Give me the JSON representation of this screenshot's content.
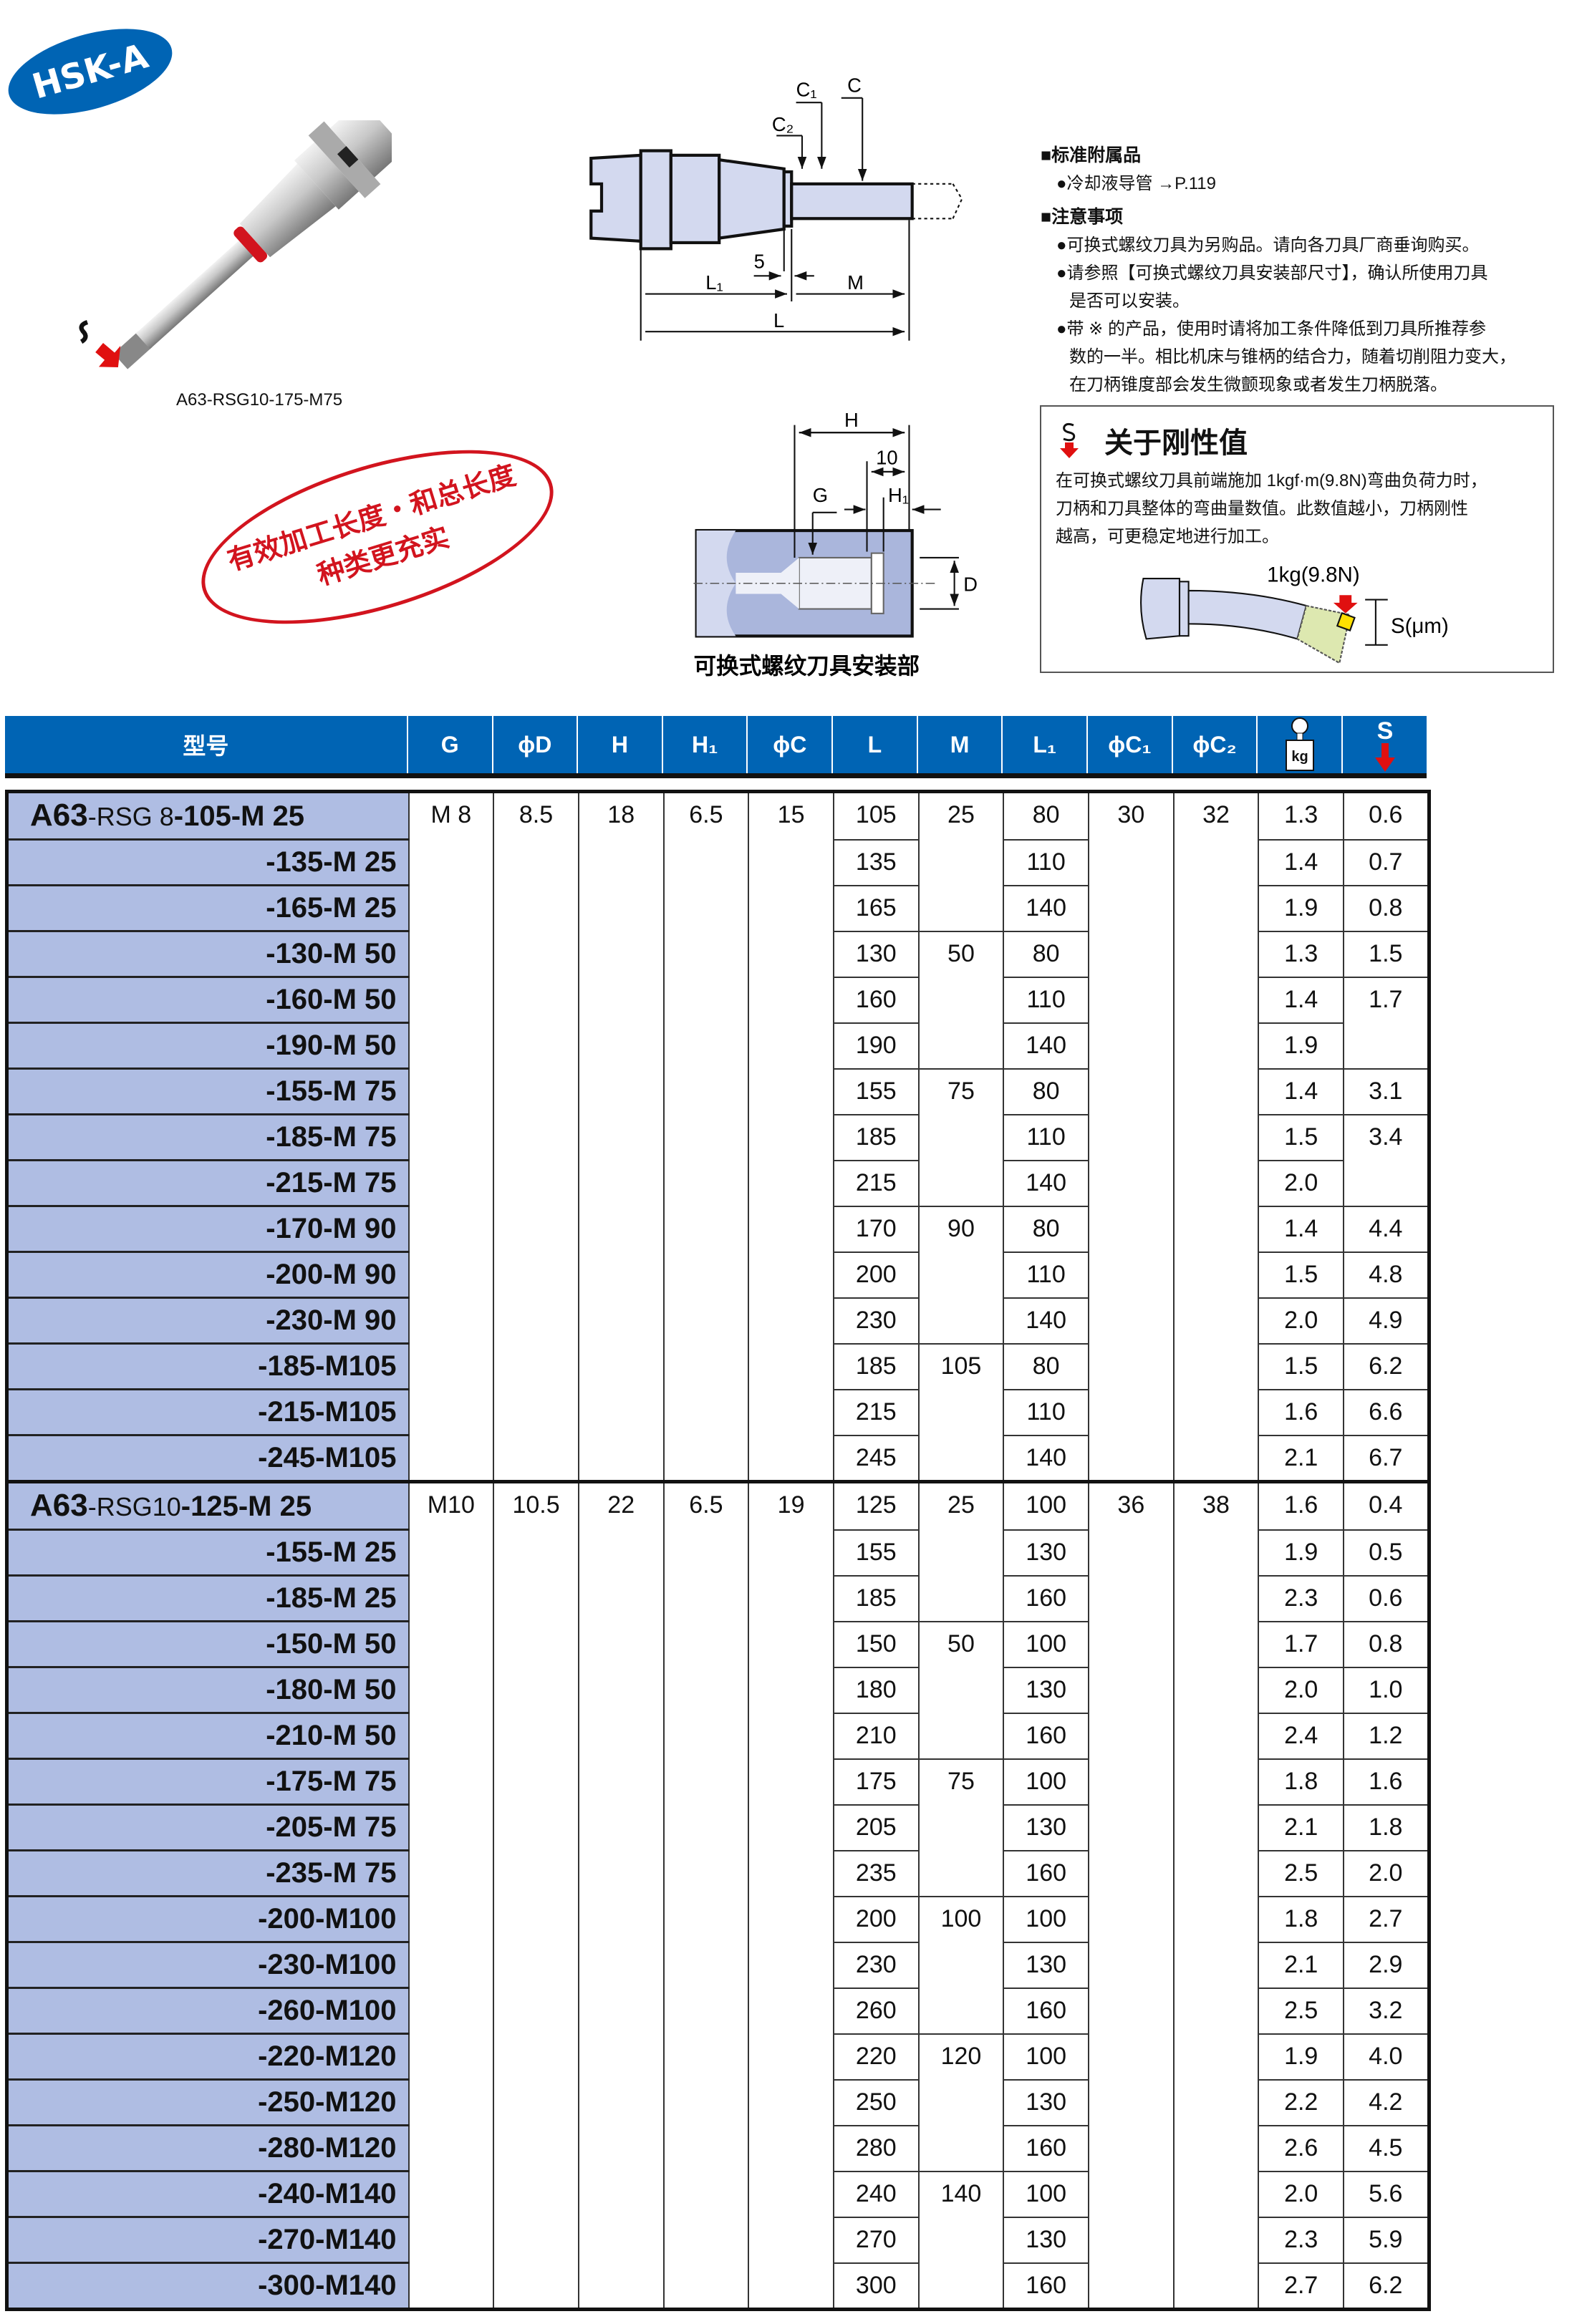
{
  "badge": "HSK-A",
  "photo_caption": "A63-RSG10-175-M75",
  "stamp": {
    "line1": "有效加工长度・和总长度",
    "line2": "种类更充实"
  },
  "diagram_main": {
    "labels": {
      "c1": "C₁",
      "c2": "C₂",
      "c": "C",
      "five": "5",
      "l1": "L₁",
      "m": "M",
      "l": "L"
    }
  },
  "diagram_mount": {
    "labels": {
      "h": "H",
      "ten": "10",
      "h1": "H₁",
      "g": "G",
      "d": "D"
    },
    "caption": "可换式螺纹刀具安装部"
  },
  "notes": {
    "accessory_heading": "■标准附属品",
    "accessory_item": "●冷却液导管 →P.119",
    "caution_heading": "■注意事项",
    "caution_1": "●可换式螺纹刀具为另购品。请向各刀具厂商垂询购买。",
    "caution_2a": "●请参照【可换式螺纹刀具安装部尺寸】，确认所使用刀具",
    "caution_2b": "是否可以安装。",
    "caution_3a": "●带 ※ 的产品，使用时请将加工条件降低到刀具所推荐参",
    "caution_3b": "数的一半。相比机床与锥柄的结合力，随着切削阻力变大，",
    "caution_3c": "在刀柄锥度部会发生微颤现象或者发生刀柄脱落。"
  },
  "stiffness": {
    "title": "关于刚性值",
    "line1": "在可换式螺纹刀具前端施加 1kgf·m(9.8N)弯曲负荷力时，",
    "line2": "刀柄和刀具整体的弯曲量数值。此数值越小，刀柄刚性",
    "line3": "越高，可更稳定地进行加工。",
    "load_label": "1kg(9.8N)",
    "s_label": "S(μm)",
    "icon": "s-deflection-arrow-icon"
  },
  "colors": {
    "header_blue": "#0064b4",
    "model_bg": "#afbde3",
    "accent_red": "#d2141e"
  },
  "table": {
    "headers": [
      "型号",
      "G",
      "ϕD",
      "H",
      "H₁",
      "ϕC",
      "L",
      "M",
      "L₁",
      "ϕC₁",
      "ϕC₂",
      "kg",
      "S"
    ],
    "weight_icon": "weight-kg-icon",
    "stiffness_icon": "s-arrow-icon",
    "rows": [
      {
        "prefix": "A63",
        "series": "-RSG 8",
        "model": "-105-M 25",
        "cells": [
          "M 8",
          "8.5",
          "18",
          "6.5",
          "15",
          "105",
          "25",
          "80",
          "30",
          "32",
          "1.3",
          "0.6"
        ]
      },
      {
        "model": "-135-M 25",
        "cells": [
          "",
          "",
          "",
          "",
          "",
          "135",
          "",
          "110",
          "",
          "",
          "1.4",
          "0.7"
        ]
      },
      {
        "model": "-165-M 25",
        "cells": [
          "",
          "",
          "",
          "",
          "",
          "165",
          "",
          "140",
          "",
          "",
          "1.9",
          "0.8"
        ]
      },
      {
        "model": "-130-M 50",
        "cells": [
          "",
          "",
          "",
          "",
          "",
          "130",
          "50",
          "80",
          "",
          "",
          "1.3",
          "1.5"
        ]
      },
      {
        "model": "-160-M 50",
        "cells": [
          "",
          "",
          "",
          "",
          "",
          "160",
          "",
          "110",
          "",
          "",
          "1.4",
          "1.7"
        ]
      },
      {
        "model": "-190-M 50",
        "cells": [
          "",
          "",
          "",
          "",
          "",
          "190",
          "",
          "140",
          "",
          "",
          "1.9",
          ""
        ]
      },
      {
        "model": "-155-M 75",
        "cells": [
          "",
          "",
          "",
          "",
          "",
          "155",
          "75",
          "80",
          "",
          "",
          "1.4",
          "3.1"
        ]
      },
      {
        "model": "-185-M 75",
        "cells": [
          "",
          "",
          "",
          "",
          "",
          "185",
          "",
          "110",
          "",
          "",
          "1.5",
          "3.4"
        ]
      },
      {
        "model": "-215-M 75",
        "cells": [
          "",
          "",
          "",
          "",
          "",
          "215",
          "",
          "140",
          "",
          "",
          "2.0",
          ""
        ]
      },
      {
        "model": "-170-M 90",
        "cells": [
          "",
          "",
          "",
          "",
          "",
          "170",
          "90",
          "80",
          "",
          "",
          "1.4",
          "4.4"
        ]
      },
      {
        "model": "-200-M 90",
        "cells": [
          "",
          "",
          "",
          "",
          "",
          "200",
          "",
          "110",
          "",
          "",
          "1.5",
          "4.8"
        ]
      },
      {
        "model": "-230-M 90",
        "cells": [
          "",
          "",
          "",
          "",
          "",
          "230",
          "",
          "140",
          "",
          "",
          "2.0",
          "4.9"
        ]
      },
      {
        "model": "-185-M105",
        "cells": [
          "",
          "",
          "",
          "",
          "",
          "185",
          "105",
          "80",
          "",
          "",
          "1.5",
          "6.2"
        ]
      },
      {
        "model": "-215-M105",
        "cells": [
          "",
          "",
          "",
          "",
          "",
          "215",
          "",
          "110",
          "",
          "",
          "1.6",
          "6.6"
        ]
      },
      {
        "model": "-245-M105",
        "cells": [
          "",
          "",
          "",
          "",
          "",
          "245",
          "",
          "140",
          "",
          "",
          "2.1",
          "6.7"
        ]
      },
      {
        "prefix": "A63",
        "series": "-RSG10",
        "model": "-125-M 25",
        "cells": [
          "M10",
          "10.5",
          "22",
          "6.5",
          "19",
          "125",
          "25",
          "100",
          "36",
          "38",
          "1.6",
          "0.4"
        ]
      },
      {
        "model": "-155-M 25",
        "cells": [
          "",
          "",
          "",
          "",
          "",
          "155",
          "",
          "130",
          "",
          "",
          "1.9",
          "0.5"
        ]
      },
      {
        "model": "-185-M 25",
        "cells": [
          "",
          "",
          "",
          "",
          "",
          "185",
          "",
          "160",
          "",
          "",
          "2.3",
          "0.6"
        ]
      },
      {
        "model": "-150-M 50",
        "cells": [
          "",
          "",
          "",
          "",
          "",
          "150",
          "50",
          "100",
          "",
          "",
          "1.7",
          "0.8"
        ]
      },
      {
        "model": "-180-M 50",
        "cells": [
          "",
          "",
          "",
          "",
          "",
          "180",
          "",
          "130",
          "",
          "",
          "2.0",
          "1.0"
        ]
      },
      {
        "model": "-210-M 50",
        "cells": [
          "",
          "",
          "",
          "",
          "",
          "210",
          "",
          "160",
          "",
          "",
          "2.4",
          "1.2"
        ]
      },
      {
        "model": "-175-M 75",
        "cells": [
          "",
          "",
          "",
          "",
          "",
          "175",
          "75",
          "100",
          "",
          "",
          "1.8",
          "1.6"
        ]
      },
      {
        "model": "-205-M 75",
        "cells": [
          "",
          "",
          "",
          "",
          "",
          "205",
          "",
          "130",
          "",
          "",
          "2.1",
          "1.8"
        ]
      },
      {
        "model": "-235-M 75",
        "cells": [
          "",
          "",
          "",
          "",
          "",
          "235",
          "",
          "160",
          "",
          "",
          "2.5",
          "2.0"
        ]
      },
      {
        "model": "-200-M100",
        "cells": [
          "",
          "",
          "",
          "",
          "",
          "200",
          "100",
          "100",
          "",
          "",
          "1.8",
          "2.7"
        ]
      },
      {
        "model": "-230-M100",
        "cells": [
          "",
          "",
          "",
          "",
          "",
          "230",
          "",
          "130",
          "",
          "",
          "2.1",
          "2.9"
        ]
      },
      {
        "model": "-260-M100",
        "cells": [
          "",
          "",
          "",
          "",
          "",
          "260",
          "",
          "160",
          "",
          "",
          "2.5",
          "3.2"
        ]
      },
      {
        "model": "-220-M120",
        "cells": [
          "",
          "",
          "",
          "",
          "",
          "220",
          "120",
          "100",
          "",
          "",
          "1.9",
          "4.0"
        ]
      },
      {
        "model": "-250-M120",
        "cells": [
          "",
          "",
          "",
          "",
          "",
          "250",
          "",
          "130",
          "",
          "",
          "2.2",
          "4.2"
        ]
      },
      {
        "model": "-280-M120",
        "cells": [
          "",
          "",
          "",
          "",
          "",
          "280",
          "",
          "160",
          "",
          "",
          "2.6",
          "4.5"
        ]
      },
      {
        "model": "-240-M140",
        "cells": [
          "",
          "",
          "",
          "",
          "",
          "240",
          "140",
          "100",
          "",
          "",
          "2.0",
          "5.6"
        ]
      },
      {
        "model": "-270-M140",
        "cells": [
          "",
          "",
          "",
          "",
          "",
          "270",
          "",
          "130",
          "",
          "",
          "2.3",
          "5.9"
        ]
      },
      {
        "model": "-300-M140",
        "cells": [
          "",
          "",
          "",
          "",
          "",
          "300",
          "",
          "160",
          "",
          "",
          "2.7",
          "6.2"
        ]
      }
    ]
  }
}
